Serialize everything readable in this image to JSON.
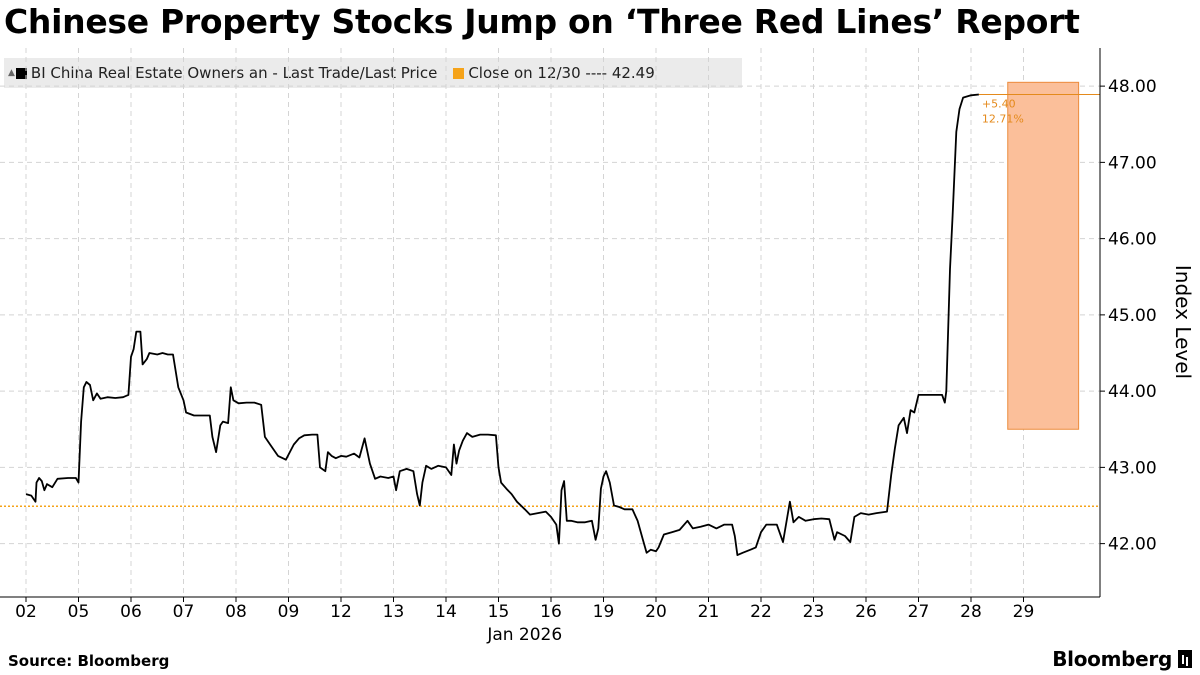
{
  "title": "Chinese Property Stocks Jump on ‘Three Red Lines’ Report",
  "legend": {
    "series_label": "BI China Real Estate Owners an - Last Trade/Last Price",
    "close_label": "Close on 12/30 ---- 42.49"
  },
  "colors": {
    "line": "#000000",
    "close": "#f5a31a",
    "highlight_fill": "#fbbf9a",
    "highlight_stroke": "#ec8b3c",
    "annotation": "#e48a1c",
    "grid": "#d4d4d4"
  },
  "footer": {
    "source": "Source: Bloomberg",
    "brand": "Bloomberg"
  },
  "chart_data": {
    "type": "line",
    "title": "Chinese Property Stocks Jump on ‘Three Red Lines’ Report",
    "ylabel": "Index Level",
    "xlabel": "Jan 2026",
    "ylim": [
      41.3,
      48.5
    ],
    "y_ticks": [
      42.0,
      43.0,
      44.0,
      45.0,
      46.0,
      47.0,
      48.0
    ],
    "y_tick_labels": [
      "42.00",
      "43.00",
      "44.00",
      "45.00",
      "46.00",
      "47.00",
      "48.00"
    ],
    "days": [
      "02",
      "05",
      "06",
      "07",
      "08",
      "09",
      "12",
      "13",
      "14",
      "15",
      "16",
      "19",
      "20",
      "21",
      "22",
      "23",
      "26",
      "27",
      "28",
      "29"
    ],
    "close_line": 42.49,
    "highlight": {
      "day_start": 18.7,
      "day_end": 20.05,
      "y_low": 43.5,
      "y_high": 48.05
    },
    "annotation": {
      "lines": [
        "+5.40",
        "12.71%"
      ],
      "level": 47.89
    },
    "series": [
      {
        "name": "BI China Real Estate Owners an - Last Trade/Last Price",
        "points": [
          [
            0.0,
            42.65
          ],
          [
            0.1,
            42.63
          ],
          [
            0.18,
            42.55
          ],
          [
            0.2,
            42.8
          ],
          [
            0.25,
            42.86
          ],
          [
            0.3,
            42.82
          ],
          [
            0.35,
            42.7
          ],
          [
            0.4,
            42.78
          ],
          [
            0.5,
            42.74
          ],
          [
            0.6,
            42.85
          ],
          [
            0.8,
            42.86
          ],
          [
            0.95,
            42.86
          ],
          [
            1.0,
            42.8
          ],
          [
            1.05,
            43.6
          ],
          [
            1.1,
            44.05
          ],
          [
            1.15,
            44.12
          ],
          [
            1.22,
            44.08
          ],
          [
            1.28,
            43.88
          ],
          [
            1.35,
            43.97
          ],
          [
            1.42,
            43.9
          ],
          [
            1.55,
            43.92
          ],
          [
            1.7,
            43.91
          ],
          [
            1.85,
            43.92
          ],
          [
            1.95,
            43.95
          ],
          [
            2.0,
            44.45
          ],
          [
            2.05,
            44.55
          ],
          [
            2.1,
            44.78
          ],
          [
            2.18,
            44.78
          ],
          [
            2.22,
            44.35
          ],
          [
            2.3,
            44.42
          ],
          [
            2.35,
            44.5
          ],
          [
            2.5,
            44.48
          ],
          [
            2.6,
            44.5
          ],
          [
            2.7,
            44.48
          ],
          [
            2.8,
            44.48
          ],
          [
            2.9,
            44.05
          ],
          [
            3.0,
            43.88
          ],
          [
            3.05,
            43.72
          ],
          [
            3.2,
            43.68
          ],
          [
            3.35,
            43.68
          ],
          [
            3.5,
            43.68
          ],
          [
            3.55,
            43.4
          ],
          [
            3.62,
            43.2
          ],
          [
            3.7,
            43.55
          ],
          [
            3.75,
            43.6
          ],
          [
            3.85,
            43.58
          ],
          [
            3.9,
            44.05
          ],
          [
            3.95,
            43.88
          ],
          [
            4.05,
            43.84
          ],
          [
            4.2,
            43.85
          ],
          [
            4.35,
            43.85
          ],
          [
            4.48,
            43.82
          ],
          [
            4.55,
            43.4
          ],
          [
            4.65,
            43.3
          ],
          [
            4.8,
            43.15
          ],
          [
            4.95,
            43.1
          ],
          [
            5.1,
            43.3
          ],
          [
            5.2,
            43.38
          ],
          [
            5.3,
            43.42
          ],
          [
            5.45,
            43.43
          ],
          [
            5.55,
            43.43
          ],
          [
            5.6,
            43.0
          ],
          [
            5.7,
            42.95
          ],
          [
            5.75,
            43.2
          ],
          [
            5.82,
            43.15
          ],
          [
            5.9,
            43.12
          ],
          [
            6.0,
            43.15
          ],
          [
            6.1,
            43.14
          ],
          [
            6.25,
            43.18
          ],
          [
            6.35,
            43.13
          ],
          [
            6.45,
            43.38
          ],
          [
            6.55,
            43.05
          ],
          [
            6.65,
            42.85
          ],
          [
            6.75,
            42.88
          ],
          [
            6.9,
            42.86
          ],
          [
            7.0,
            42.88
          ],
          [
            7.05,
            42.7
          ],
          [
            7.12,
            42.95
          ],
          [
            7.25,
            42.98
          ],
          [
            7.38,
            42.95
          ],
          [
            7.45,
            42.65
          ],
          [
            7.5,
            42.5
          ],
          [
            7.55,
            42.8
          ],
          [
            7.62,
            43.02
          ],
          [
            7.72,
            42.98
          ],
          [
            7.85,
            43.02
          ],
          [
            8.0,
            43.0
          ],
          [
            8.1,
            42.9
          ],
          [
            8.15,
            43.3
          ],
          [
            8.2,
            43.05
          ],
          [
            8.25,
            43.22
          ],
          [
            8.32,
            43.35
          ],
          [
            8.4,
            43.45
          ],
          [
            8.5,
            43.4
          ],
          [
            8.65,
            43.43
          ],
          [
            8.8,
            43.43
          ],
          [
            8.95,
            43.42
          ],
          [
            9.0,
            43.0
          ],
          [
            9.05,
            42.8
          ],
          [
            9.15,
            42.72
          ],
          [
            9.25,
            42.65
          ],
          [
            9.35,
            42.55
          ],
          [
            9.5,
            42.45
          ],
          [
            9.6,
            42.38
          ],
          [
            9.75,
            42.4
          ],
          [
            9.9,
            42.42
          ],
          [
            10.0,
            42.35
          ],
          [
            10.1,
            42.25
          ],
          [
            10.15,
            42.0
          ],
          [
            10.2,
            42.7
          ],
          [
            10.25,
            42.82
          ],
          [
            10.3,
            42.3
          ],
          [
            10.38,
            42.3
          ],
          [
            10.5,
            42.28
          ],
          [
            10.65,
            42.28
          ],
          [
            10.78,
            42.3
          ],
          [
            10.85,
            42.05
          ],
          [
            10.9,
            42.2
          ],
          [
            10.95,
            42.72
          ],
          [
            11.0,
            42.88
          ],
          [
            11.05,
            42.95
          ],
          [
            11.12,
            42.8
          ],
          [
            11.2,
            42.5
          ],
          [
            11.3,
            42.48
          ],
          [
            11.4,
            42.45
          ],
          [
            11.55,
            42.45
          ],
          [
            11.65,
            42.3
          ],
          [
            11.75,
            42.05
          ],
          [
            11.82,
            41.88
          ],
          [
            11.9,
            41.92
          ],
          [
            12.0,
            41.9
          ],
          [
            12.05,
            41.95
          ],
          [
            12.15,
            42.12
          ],
          [
            12.3,
            42.15
          ],
          [
            12.45,
            42.18
          ],
          [
            12.6,
            42.3
          ],
          [
            12.7,
            42.2
          ],
          [
            12.85,
            42.22
          ],
          [
            13.0,
            42.25
          ],
          [
            13.15,
            42.2
          ],
          [
            13.3,
            42.25
          ],
          [
            13.45,
            42.25
          ],
          [
            13.5,
            42.1
          ],
          [
            13.55,
            41.85
          ],
          [
            13.65,
            41.88
          ],
          [
            13.8,
            41.92
          ],
          [
            13.9,
            41.95
          ],
          [
            14.0,
            42.15
          ],
          [
            14.1,
            42.25
          ],
          [
            14.3,
            42.25
          ],
          [
            14.42,
            42.02
          ],
          [
            14.5,
            42.35
          ],
          [
            14.55,
            42.55
          ],
          [
            14.62,
            42.28
          ],
          [
            14.72,
            42.35
          ],
          [
            14.85,
            42.3
          ],
          [
            15.0,
            42.32
          ],
          [
            15.15,
            42.33
          ],
          [
            15.3,
            42.32
          ],
          [
            15.4,
            42.05
          ],
          [
            15.45,
            42.15
          ],
          [
            15.6,
            42.1
          ],
          [
            15.7,
            42.02
          ],
          [
            15.78,
            42.35
          ],
          [
            15.9,
            42.4
          ],
          [
            16.05,
            42.38
          ],
          [
            16.2,
            42.4
          ],
          [
            16.4,
            42.42
          ],
          [
            16.48,
            42.9
          ],
          [
            16.55,
            43.25
          ],
          [
            16.62,
            43.55
          ],
          [
            16.72,
            43.65
          ],
          [
            16.78,
            43.45
          ],
          [
            16.85,
            43.75
          ],
          [
            16.92,
            43.72
          ],
          [
            17.0,
            43.95
          ],
          [
            17.15,
            43.95
          ],
          [
            17.3,
            43.95
          ],
          [
            17.45,
            43.95
          ],
          [
            17.5,
            43.85
          ],
          [
            17.53,
            44.0
          ],
          [
            17.6,
            45.6
          ],
          [
            17.65,
            46.3
          ],
          [
            17.72,
            47.4
          ],
          [
            17.78,
            47.7
          ],
          [
            17.85,
            47.85
          ],
          [
            18.0,
            47.88
          ],
          [
            18.15,
            47.89
          ]
        ]
      }
    ]
  }
}
